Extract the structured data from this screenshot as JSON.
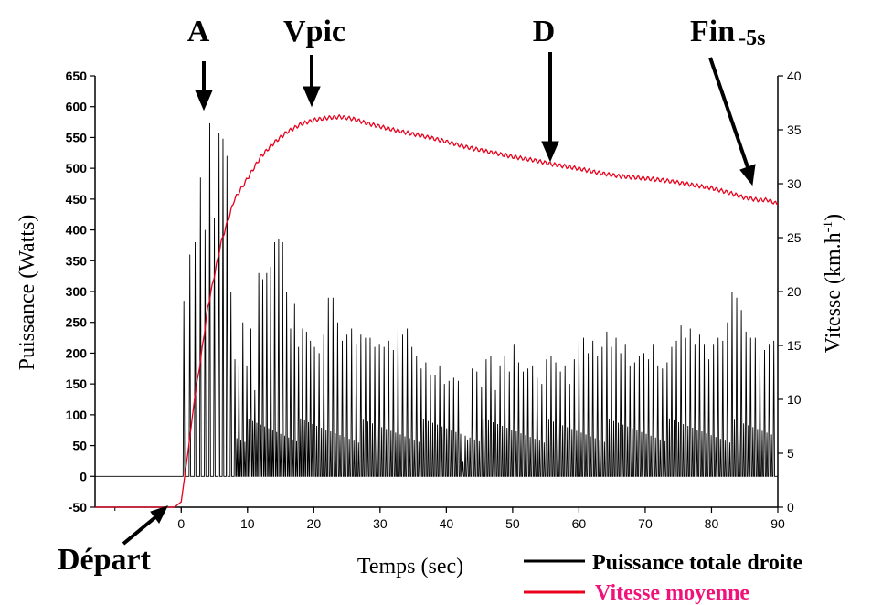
{
  "chart_data": {
    "type": "line",
    "xlabel": "Temps (sec)",
    "ylabel_left": "Puissance (Watts)",
    "ylabel_right": "Vitesse (km.h-1)",
    "ylabel_right_parts": {
      "base": "Vitesse (km.h",
      "sup": "-1",
      "close": ")"
    },
    "xlim": [
      -13,
      90
    ],
    "ylim_left": [
      -50,
      650
    ],
    "ylim_right": [
      0,
      40
    ],
    "x_ticks": [
      0,
      10,
      20,
      30,
      40,
      50,
      60,
      70,
      80,
      90
    ],
    "y_left_ticks": [
      -50,
      0,
      50,
      100,
      150,
      200,
      250,
      300,
      350,
      400,
      450,
      500,
      550,
      600,
      650
    ],
    "y_right_ticks": [
      0,
      5,
      10,
      15,
      20,
      25,
      30,
      35,
      40
    ],
    "grid": false,
    "series": [
      {
        "name": "Puissance totale droite",
        "axis": "left",
        "color": "#000000",
        "style": "oscillating pedal-stroke power",
        "peaks": [
          [
            0.4,
            285
          ],
          [
            1.3,
            360
          ],
          [
            2.1,
            380
          ],
          [
            2.9,
            485
          ],
          [
            3.6,
            400
          ],
          [
            4.3,
            573
          ],
          [
            5.0,
            420
          ],
          [
            5.7,
            558
          ],
          [
            6.3,
            548
          ],
          [
            6.9,
            520
          ],
          [
            7.5,
            300
          ],
          [
            8.1,
            190
          ],
          [
            8.7,
            180
          ],
          [
            9.3,
            250
          ],
          [
            9.9,
            180
          ],
          [
            10.5,
            240
          ],
          [
            11.1,
            140
          ],
          [
            11.7,
            330
          ],
          [
            12.3,
            320
          ],
          [
            12.9,
            330
          ],
          [
            13.5,
            340
          ],
          [
            14.1,
            380
          ],
          [
            14.7,
            385
          ],
          [
            15.3,
            380
          ],
          [
            15.9,
            300
          ],
          [
            16.5,
            240
          ],
          [
            17.1,
            280
          ],
          [
            17.7,
            210
          ],
          [
            18.3,
            240
          ],
          [
            18.9,
            235
          ],
          [
            19.5,
            220
          ],
          [
            20.1,
            210
          ],
          [
            20.8,
            200
          ],
          [
            21.5,
            230
          ],
          [
            22.2,
            290
          ],
          [
            22.9,
            290
          ],
          [
            23.6,
            250
          ],
          [
            24.3,
            220
          ],
          [
            25.0,
            230
          ],
          [
            25.7,
            240
          ],
          [
            26.4,
            215
          ],
          [
            27.1,
            230
          ],
          [
            27.8,
            225
          ],
          [
            28.5,
            225
          ],
          [
            29.2,
            210
          ],
          [
            29.9,
            215
          ],
          [
            30.6,
            210
          ],
          [
            31.3,
            220
          ],
          [
            32.0,
            205
          ],
          [
            32.7,
            240
          ],
          [
            33.4,
            230
          ],
          [
            34.1,
            240
          ],
          [
            34.8,
            210
          ],
          [
            35.5,
            195
          ],
          [
            36.2,
            175
          ],
          [
            36.9,
            185
          ],
          [
            37.6,
            165
          ],
          [
            38.3,
            165
          ],
          [
            39.0,
            180
          ],
          [
            39.7,
            150
          ],
          [
            40.4,
            155
          ],
          [
            41.1,
            160
          ],
          [
            41.8,
            155
          ],
          [
            42.5,
            25
          ],
          [
            43.2,
            60
          ],
          [
            43.9,
            175
          ],
          [
            44.6,
            170
          ],
          [
            45.3,
            145
          ],
          [
            46.0,
            190
          ],
          [
            46.7,
            195
          ],
          [
            47.4,
            140
          ],
          [
            48.1,
            180
          ],
          [
            48.8,
            195
          ],
          [
            49.5,
            170
          ],
          [
            50.2,
            215
          ],
          [
            50.9,
            185
          ],
          [
            51.6,
            170
          ],
          [
            52.3,
            175
          ],
          [
            53.0,
            180
          ],
          [
            53.7,
            160
          ],
          [
            54.4,
            150
          ],
          [
            55.1,
            190
          ],
          [
            55.8,
            195
          ],
          [
            56.5,
            185
          ],
          [
            57.2,
            170
          ],
          [
            57.9,
            180
          ],
          [
            58.6,
            150
          ],
          [
            59.3,
            190
          ],
          [
            60.0,
            220
          ],
          [
            60.7,
            225
          ],
          [
            61.4,
            200
          ],
          [
            62.1,
            220
          ],
          [
            62.8,
            195
          ],
          [
            63.5,
            210
          ],
          [
            64.2,
            235
          ],
          [
            64.9,
            210
          ],
          [
            65.6,
            225
          ],
          [
            66.3,
            200
          ],
          [
            67.0,
            215
          ],
          [
            67.7,
            180
          ],
          [
            68.4,
            185
          ],
          [
            69.1,
            195
          ],
          [
            69.8,
            200
          ],
          [
            70.5,
            190
          ],
          [
            71.2,
            215
          ],
          [
            71.9,
            180
          ],
          [
            72.6,
            175
          ],
          [
            73.3,
            185
          ],
          [
            74.0,
            210
          ],
          [
            74.7,
            220
          ],
          [
            75.4,
            245
          ],
          [
            76.1,
            225
          ],
          [
            76.8,
            240
          ],
          [
            77.5,
            215
          ],
          [
            78.2,
            230
          ],
          [
            78.9,
            215
          ],
          [
            79.6,
            190
          ],
          [
            80.3,
            215
          ],
          [
            81.0,
            225
          ],
          [
            81.7,
            220
          ],
          [
            82.4,
            250
          ],
          [
            83.1,
            300
          ],
          [
            83.8,
            290
          ],
          [
            84.5,
            270
          ],
          [
            85.2,
            235
          ],
          [
            85.9,
            225
          ],
          [
            86.6,
            225
          ],
          [
            87.3,
            195
          ],
          [
            88.0,
            205
          ],
          [
            88.7,
            215
          ],
          [
            89.4,
            220
          ]
        ]
      },
      {
        "name": "Vitesse moyenne",
        "axis": "right",
        "color": "#e8001c",
        "points": [
          [
            -13,
            0
          ],
          [
            -1,
            0
          ],
          [
            0,
            0.5
          ],
          [
            1,
            5
          ],
          [
            2,
            10
          ],
          [
            3,
            14
          ],
          [
            4,
            18.5
          ],
          [
            5,
            21.5
          ],
          [
            6,
            24.5
          ],
          [
            7,
            26.5
          ],
          [
            8,
            28.5
          ],
          [
            10,
            30.5
          ],
          [
            12,
            32.5
          ],
          [
            14,
            33.8
          ],
          [
            16,
            34.8
          ],
          [
            18,
            35.5
          ],
          [
            20,
            35.9
          ],
          [
            22,
            36.1
          ],
          [
            24,
            36.2
          ],
          [
            26,
            36.0
          ],
          [
            28,
            35.6
          ],
          [
            30,
            35.3
          ],
          [
            32,
            35.0
          ],
          [
            35,
            34.6
          ],
          [
            38,
            34.2
          ],
          [
            40,
            33.9
          ],
          [
            43,
            33.4
          ],
          [
            46,
            33.0
          ],
          [
            50,
            32.5
          ],
          [
            53,
            32.2
          ],
          [
            56,
            31.8
          ],
          [
            60,
            31.4
          ],
          [
            63,
            31.0
          ],
          [
            66,
            30.7
          ],
          [
            70,
            30.5
          ],
          [
            73,
            30.3
          ],
          [
            76,
            30.0
          ],
          [
            80,
            29.6
          ],
          [
            83,
            29.1
          ],
          [
            85,
            28.7
          ],
          [
            87,
            28.5
          ],
          [
            88.5,
            28.5
          ],
          [
            90,
            28.1
          ]
        ]
      }
    ],
    "annotations": [
      {
        "label": "A",
        "x": 5
      },
      {
        "label": "Vpic",
        "x": 22
      },
      {
        "label": "D",
        "x": 57
      },
      {
        "label": "Fin",
        "sub": "-5s",
        "x": 87
      },
      {
        "label": "Départ",
        "x": -0.5
      }
    ],
    "legend": [
      {
        "label": "Puissance totale droite",
        "color": "#000000",
        "text_color": "#000000"
      },
      {
        "label": "Vitesse moyenne",
        "color": "#e8001c",
        "text_color": "#f0127a"
      }
    ],
    "legend_position": "bottom-right"
  }
}
